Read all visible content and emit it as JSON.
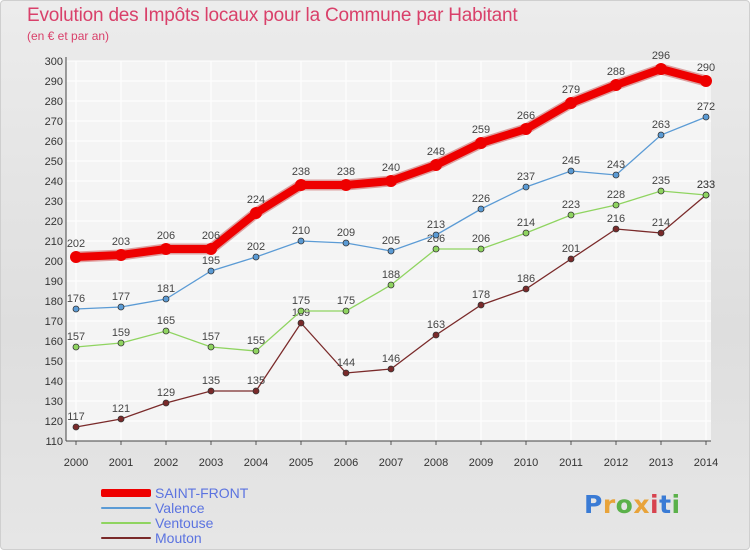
{
  "title": "Evolution des Impôts locaux pour la Commune par Habitant",
  "subtitle": "(en € et par an)",
  "logo": {
    "text": "Proxiti",
    "colors": [
      "#3a7bd5",
      "#e8a33a",
      "#5bb14a",
      "#e8a33a",
      "#d7434f",
      "#3a7bd5",
      "#5bb14a"
    ]
  },
  "chart_data": {
    "type": "line",
    "title": "Evolution des Impôts locaux pour la Commune par Habitant",
    "subtitle": "(en € et par an)",
    "x": [
      2000,
      2001,
      2002,
      2003,
      2004,
      2005,
      2006,
      2007,
      2008,
      2009,
      2010,
      2011,
      2012,
      2013,
      2014
    ],
    "x_tick_labels": [
      "2000",
      "2001",
      "2002",
      "2003",
      "2004",
      "2005",
      "2006",
      "2007",
      "2008",
      "2009",
      "2010",
      "2011",
      "2012",
      "2013",
      "2014"
    ],
    "ylim": [
      110,
      300
    ],
    "y_ticks": [
      110,
      120,
      130,
      140,
      150,
      160,
      170,
      180,
      190,
      200,
      210,
      220,
      230,
      240,
      250,
      260,
      270,
      280,
      290,
      300
    ],
    "grid": true,
    "legend_position": "bottom-left",
    "series": [
      {
        "name": "SAINT-FRONT",
        "color": "#ee0000",
        "emphasis": true,
        "values": [
          202,
          203,
          206,
          206,
          224,
          238,
          238,
          240,
          248,
          259,
          266,
          279,
          288,
          296,
          290
        ]
      },
      {
        "name": "Valence",
        "color": "#5b9bd5",
        "emphasis": false,
        "values": [
          176,
          177,
          181,
          195,
          202,
          210,
          209,
          205,
          213,
          226,
          237,
          245,
          243,
          263,
          272
        ]
      },
      {
        "name": "Ventouse",
        "color": "#8fd460",
        "emphasis": false,
        "values": [
          157,
          159,
          165,
          157,
          155,
          175,
          175,
          188,
          206,
          206,
          214,
          223,
          228,
          235,
          233
        ]
      },
      {
        "name": "Mouton",
        "color": "#7a2a2a",
        "emphasis": false,
        "values": [
          117,
          121,
          129,
          135,
          135,
          169,
          144,
          146,
          163,
          178,
          186,
          201,
          216,
          214,
          233
        ]
      }
    ]
  }
}
